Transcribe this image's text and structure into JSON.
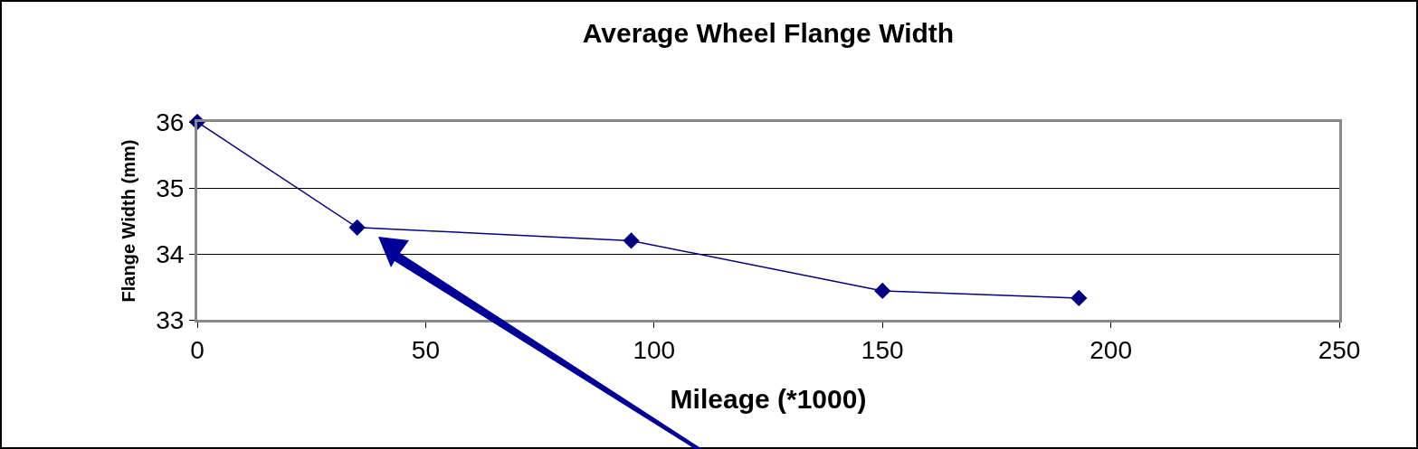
{
  "chart_data": {
    "type": "line",
    "title": "Average Wheel Flange Width",
    "xlabel": "Mileage (*1000)",
    "ylabel": "Flange Width (mm)",
    "x": [
      0,
      35,
      95,
      150,
      193
    ],
    "series": [
      {
        "color": "#000080",
        "values": [
          36,
          34.4,
          34.2,
          33.44,
          33.33
        ]
      }
    ],
    "xlim": [
      0,
      250
    ],
    "xticks": [
      0,
      50,
      100,
      150,
      200,
      250
    ],
    "ylim": [
      33,
      36
    ],
    "yticks": [
      33,
      34,
      35,
      36
    ],
    "grid": "y",
    "marker": "diamond",
    "line_style": "solid"
  }
}
